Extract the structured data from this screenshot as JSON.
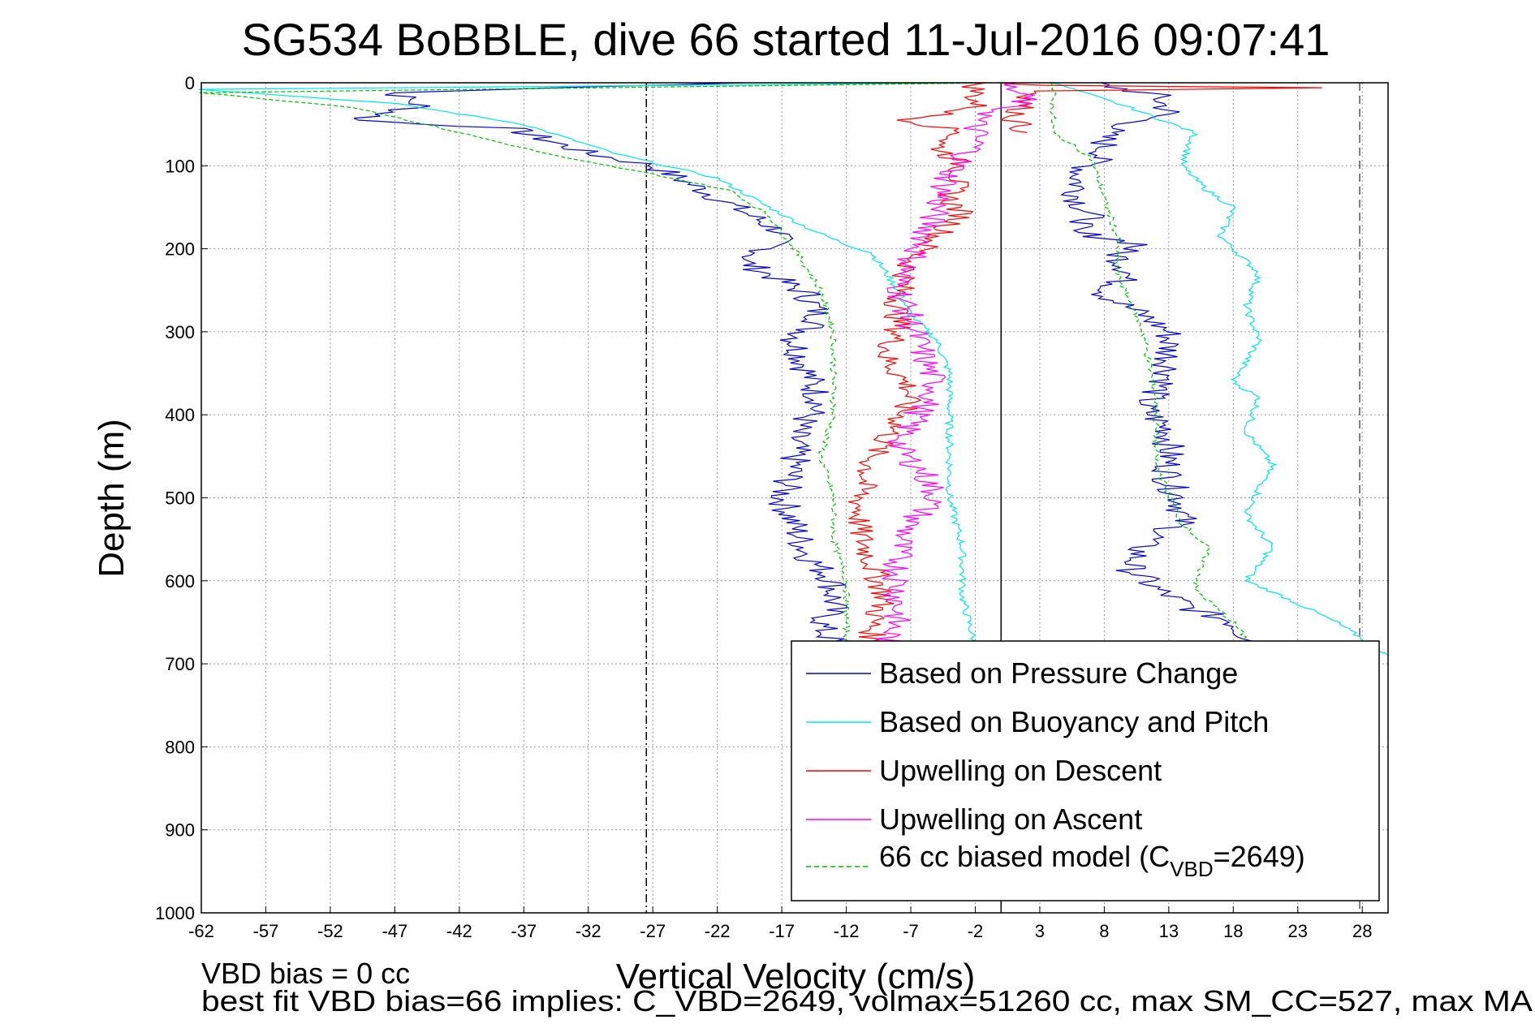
{
  "chart_data": {
    "type": "line",
    "title": "SG534 BoBBLE, dive 66 started 11-Jul-2016 09:07:41",
    "xlabel": "Vertical Velocity (cm/s)",
    "ylabel": "Depth (m)",
    "xlim": [
      -62,
      30
    ],
    "ylim": [
      0,
      1000
    ],
    "y_reversed": true,
    "grid": true,
    "xticks": [
      "-62",
      "-57",
      "-52",
      "-47",
      "-42",
      "-37",
      "-32",
      "-27",
      "-22",
      "-17",
      "-12",
      "-7",
      "-2",
      "3",
      "8",
      "13",
      "18",
      "23",
      "28"
    ],
    "yticks": [
      "0",
      "100",
      "200",
      "300",
      "400",
      "500",
      "600",
      "700",
      "800",
      "900",
      "1000"
    ],
    "legend_position": "bottom-right",
    "annotations": [
      "VBD bias = 0 cc",
      "best fit VBD bias=66 implies: C_VBD=2649, volmax=51260 cc, max SM_CC=527, max MA"
    ],
    "reference_lines": [
      {
        "style": "dash-dot",
        "x": -27.5,
        "color": "#000000"
      },
      {
        "style": "solid",
        "x": 0,
        "color": "#000000"
      },
      {
        "style": "dashed",
        "x": 27.8,
        "color": "#555555"
      }
    ],
    "series": [
      {
        "name": "Based on Pressure Change",
        "color": "#0000cc",
        "style": "solid",
        "points": [
          [
            -20,
            0
          ],
          [
            -47,
            12
          ],
          [
            -45,
            28
          ],
          [
            -50,
            45
          ],
          [
            -38,
            55
          ],
          [
            -32,
            85
          ],
          [
            -27,
            100
          ],
          [
            -23,
            130
          ],
          [
            -20,
            155
          ],
          [
            -17,
            180
          ],
          [
            -18,
            200
          ],
          [
            -20,
            215
          ],
          [
            -15,
            255
          ],
          [
            -14,
            285
          ],
          [
            -16,
            310
          ],
          [
            -15,
            350
          ],
          [
            -14,
            385
          ],
          [
            -16,
            420
          ],
          [
            -16,
            460
          ],
          [
            -17,
            500
          ],
          [
            -16,
            535
          ],
          [
            -15,
            570
          ],
          [
            -13,
            600
          ],
          [
            -13,
            630
          ],
          [
            -14,
            655
          ],
          [
            -13,
            675
          ]
        ],
        "points_ascent": [
          [
            7,
            0
          ],
          [
            12,
            15
          ],
          [
            13,
            35
          ],
          [
            8,
            60
          ],
          [
            8,
            85
          ],
          [
            6,
            110
          ],
          [
            6,
            140
          ],
          [
            7,
            165
          ],
          [
            5,
            178
          ],
          [
            11,
            195
          ],
          [
            9,
            205
          ],
          [
            10,
            230
          ],
          [
            8,
            255
          ],
          [
            11,
            280
          ],
          [
            13,
            300
          ],
          [
            13,
            330
          ],
          [
            13,
            355
          ],
          [
            11,
            390
          ],
          [
            13,
            420
          ],
          [
            13,
            450
          ],
          [
            13,
            480
          ],
          [
            14,
            505
          ],
          [
            14,
            530
          ],
          [
            11,
            555
          ],
          [
            10,
            585
          ],
          [
            12,
            610
          ],
          [
            15,
            635
          ],
          [
            18,
            650
          ],
          [
            19,
            665
          ],
          [
            20,
            680
          ]
        ]
      },
      {
        "name": "Based on Buoyancy and Pitch",
        "color": "#00e5e5",
        "style": "solid",
        "points": [
          [
            -2,
            0
          ],
          [
            -62,
            8
          ],
          [
            -47,
            25
          ],
          [
            -37,
            50
          ],
          [
            -30,
            85
          ],
          [
            -22,
            115
          ],
          [
            -18,
            150
          ],
          [
            -15,
            175
          ],
          [
            -12,
            195
          ],
          [
            -10,
            205
          ],
          [
            -8,
            250
          ],
          [
            -7,
            280
          ],
          [
            -5,
            310
          ],
          [
            -4,
            350
          ],
          [
            -4,
            400
          ],
          [
            -4,
            460
          ],
          [
            -4,
            500
          ],
          [
            -3,
            560
          ],
          [
            -3,
            620
          ],
          [
            -2,
            680
          ]
        ],
        "points_ascent": [
          [
            4,
            0
          ],
          [
            10,
            30
          ],
          [
            15,
            60
          ],
          [
            14,
            100
          ],
          [
            16,
            130
          ],
          [
            18,
            150
          ],
          [
            17,
            185
          ],
          [
            20,
            230
          ],
          [
            19,
            270
          ],
          [
            20,
            310
          ],
          [
            18,
            360
          ],
          [
            20,
            380
          ],
          [
            19,
            420
          ],
          [
            21,
            460
          ],
          [
            19,
            520
          ],
          [
            21,
            560
          ],
          [
            19,
            600
          ],
          [
            22,
            620
          ],
          [
            26,
            650
          ],
          [
            30,
            690
          ]
        ]
      },
      {
        "name": "Upwelling on Descent",
        "color": "#ff0000",
        "style": "solid",
        "points": [
          [
            -2,
            0
          ],
          [
            -2,
            30
          ],
          [
            -7,
            45
          ],
          [
            -3,
            60
          ],
          [
            -5,
            75
          ],
          [
            -3,
            100
          ],
          [
            -4,
            140
          ],
          [
            -3,
            160
          ],
          [
            -5,
            185
          ],
          [
            -7,
            215
          ],
          [
            -8,
            260
          ],
          [
            -8,
            300
          ],
          [
            -9,
            330
          ],
          [
            -7,
            370
          ],
          [
            -8,
            410
          ],
          [
            -10,
            450
          ],
          [
            -11,
            500
          ],
          [
            -11,
            540
          ],
          [
            -10,
            580
          ],
          [
            -9,
            620
          ],
          [
            -10,
            650
          ],
          [
            -10,
            680
          ]
        ],
        "points_ascent": [
          [
            0,
            0
          ],
          [
            3,
            3
          ],
          [
            25,
            6
          ],
          [
            3,
            10
          ],
          [
            2,
            20
          ],
          [
            1,
            45
          ],
          [
            2,
            60
          ]
        ]
      },
      {
        "name": "Upwelling on Ascent",
        "color": "#ff00ff",
        "style": "solid",
        "points": [
          [
            0,
            0
          ],
          [
            2,
            20
          ],
          [
            -2,
            45
          ],
          [
            -2,
            75
          ],
          [
            -4,
            110
          ],
          [
            -5,
            150
          ],
          [
            -6,
            190
          ],
          [
            -8,
            240
          ],
          [
            -7,
            290
          ],
          [
            -6,
            330
          ],
          [
            -5,
            370
          ],
          [
            -7,
            410
          ],
          [
            -8,
            440
          ],
          [
            -6,
            470
          ],
          [
            -5,
            500
          ],
          [
            -7,
            530
          ],
          [
            -8,
            560
          ],
          [
            -8,
            600
          ],
          [
            -8,
            640
          ],
          [
            -9,
            680
          ]
        ]
      },
      {
        "name": "66 cc biased model (C_VBD=2649)",
        "color": "#00bb00",
        "style": "dashed",
        "points": [
          [
            0,
            0
          ],
          [
            -62,
            12
          ],
          [
            -50,
            30
          ],
          [
            -42,
            60
          ],
          [
            -34,
            90
          ],
          [
            -27,
            110
          ],
          [
            -21,
            130
          ],
          [
            -18,
            160
          ],
          [
            -16,
            200
          ],
          [
            -14,
            250
          ],
          [
            -13,
            300
          ],
          [
            -13,
            350
          ],
          [
            -13,
            400
          ],
          [
            -14,
            450
          ],
          [
            -13,
            500
          ],
          [
            -13,
            550
          ],
          [
            -12,
            600
          ],
          [
            -12,
            650
          ],
          [
            -12,
            690
          ]
        ],
        "points_ascent": [
          [
            4,
            0
          ],
          [
            4,
            60
          ],
          [
            7,
            90
          ],
          [
            8,
            140
          ],
          [
            9,
            185
          ],
          [
            9,
            230
          ],
          [
            11,
            300
          ],
          [
            12,
            380
          ],
          [
            12,
            460
          ],
          [
            14,
            530
          ],
          [
            16,
            560
          ],
          [
            15,
            610
          ],
          [
            18,
            650
          ],
          [
            20,
            690
          ]
        ]
      }
    ]
  },
  "legend": {
    "items": [
      {
        "label": "Based on Pressure Change",
        "color": "#0000cc"
      },
      {
        "label": "Based on Buoyancy and Pitch",
        "color": "#00e5e5"
      },
      {
        "label": "Upwelling on Descent",
        "color": "#ff0000"
      },
      {
        "label": "Upwelling on Ascent",
        "color": "#ff00ff"
      }
    ],
    "model_prefix": "66 cc biased model (C",
    "model_sub": "VBD",
    "model_suffix": "=2649)",
    "model_color": "#00bb00"
  }
}
